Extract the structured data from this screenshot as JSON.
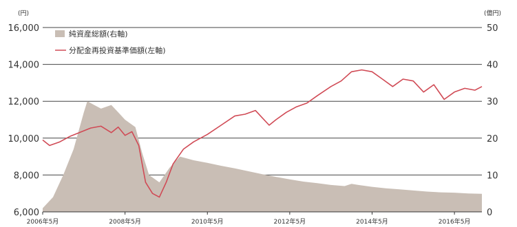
{
  "chart_data": {
    "type": "area+line",
    "y_left_unit": "(円)",
    "y_right_unit": "(億円)",
    "y_left_ticks": [
      "16,000",
      "14,000",
      "12,000",
      "10,000",
      "8,000",
      "6,000"
    ],
    "y_right_ticks": [
      "50",
      "40",
      "30",
      "20",
      "10",
      "0"
    ],
    "x_ticks": [
      "2006年5月",
      "2008年5月",
      "2010年5月",
      "2012年5月",
      "2014年5月",
      "2016年5月"
    ],
    "ylim_left": [
      6000,
      16000
    ],
    "ylim_right": [
      0,
      50
    ],
    "grid": "horizontal",
    "legend_position": "top-left",
    "series": [
      {
        "name": "純資産総額(右軸)",
        "kind": "area",
        "axis": "right",
        "color": "#c9beb5",
        "points": [
          [
            "2006-05",
            1
          ],
          [
            "2006-08",
            4
          ],
          [
            "2006-11",
            10
          ],
          [
            "2007-02",
            17
          ],
          [
            "2007-05",
            27
          ],
          [
            "2007-06",
            30
          ],
          [
            "2007-08",
            29
          ],
          [
            "2007-10",
            28
          ],
          [
            "2008-01",
            29
          ],
          [
            "2008-03",
            27
          ],
          [
            "2008-05",
            25
          ],
          [
            "2008-08",
            23
          ],
          [
            "2008-10",
            16
          ],
          [
            "2008-12",
            10
          ],
          [
            "2009-03",
            8
          ],
          [
            "2009-06",
            12
          ],
          [
            "2009-09",
            15
          ],
          [
            "2010-01",
            14
          ],
          [
            "2010-05",
            13.3
          ],
          [
            "2010-09",
            12.5
          ],
          [
            "2011-01",
            11.8
          ],
          [
            "2011-05",
            11.0
          ],
          [
            "2011-09",
            10.2
          ],
          [
            "2012-01",
            9.5
          ],
          [
            "2012-05",
            8.8
          ],
          [
            "2012-09",
            8.2
          ],
          [
            "2013-01",
            7.8
          ],
          [
            "2013-05",
            7.3
          ],
          [
            "2013-09",
            7.0
          ],
          [
            "2013-11",
            7.6
          ],
          [
            "2014-01",
            7.3
          ],
          [
            "2014-05",
            6.8
          ],
          [
            "2014-09",
            6.4
          ],
          [
            "2015-01",
            6.1
          ],
          [
            "2015-05",
            5.8
          ],
          [
            "2015-09",
            5.5
          ],
          [
            "2016-01",
            5.3
          ],
          [
            "2016-05",
            5.2
          ],
          [
            "2016-09",
            5.0
          ],
          [
            "2017-01",
            4.9
          ]
        ]
      },
      {
        "name": "分配金再投資基準価額(左軸)",
        "kind": "line",
        "axis": "left",
        "color": "#d04a55",
        "points": [
          [
            "2006-05",
            9900
          ],
          [
            "2006-07",
            9600
          ],
          [
            "2006-10",
            9800
          ],
          [
            "2007-01",
            10100
          ],
          [
            "2007-05",
            10400
          ],
          [
            "2007-07",
            10550
          ],
          [
            "2007-10",
            10650
          ],
          [
            "2008-01",
            10300
          ],
          [
            "2008-03",
            10600
          ],
          [
            "2008-05",
            10150
          ],
          [
            "2008-07",
            10350
          ],
          [
            "2008-09",
            9600
          ],
          [
            "2008-10",
            8600
          ],
          [
            "2008-11",
            7600
          ],
          [
            "2009-01",
            7000
          ],
          [
            "2009-03",
            6800
          ],
          [
            "2009-05",
            7600
          ],
          [
            "2009-07",
            8600
          ],
          [
            "2009-10",
            9400
          ],
          [
            "2010-01",
            9800
          ],
          [
            "2010-05",
            10200
          ],
          [
            "2010-09",
            10700
          ],
          [
            "2011-01",
            11200
          ],
          [
            "2011-04",
            11300
          ],
          [
            "2011-07",
            11500
          ],
          [
            "2011-09",
            11100
          ],
          [
            "2011-11",
            10700
          ],
          [
            "2012-01",
            11000
          ],
          [
            "2012-04",
            11400
          ],
          [
            "2012-07",
            11700
          ],
          [
            "2012-10",
            11900
          ],
          [
            "2013-01",
            12300
          ],
          [
            "2013-05",
            12800
          ],
          [
            "2013-08",
            13100
          ],
          [
            "2013-11",
            13600
          ],
          [
            "2014-02",
            13700
          ],
          [
            "2014-05",
            13600
          ],
          [
            "2014-08",
            13200
          ],
          [
            "2014-11",
            12800
          ],
          [
            "2015-02",
            13200
          ],
          [
            "2015-05",
            13100
          ],
          [
            "2015-08",
            12500
          ],
          [
            "2015-11",
            12900
          ],
          [
            "2016-02",
            12100
          ],
          [
            "2016-05",
            12500
          ],
          [
            "2016-08",
            12700
          ],
          [
            "2016-11",
            12600
          ],
          [
            "2017-01",
            12800
          ]
        ]
      }
    ]
  }
}
